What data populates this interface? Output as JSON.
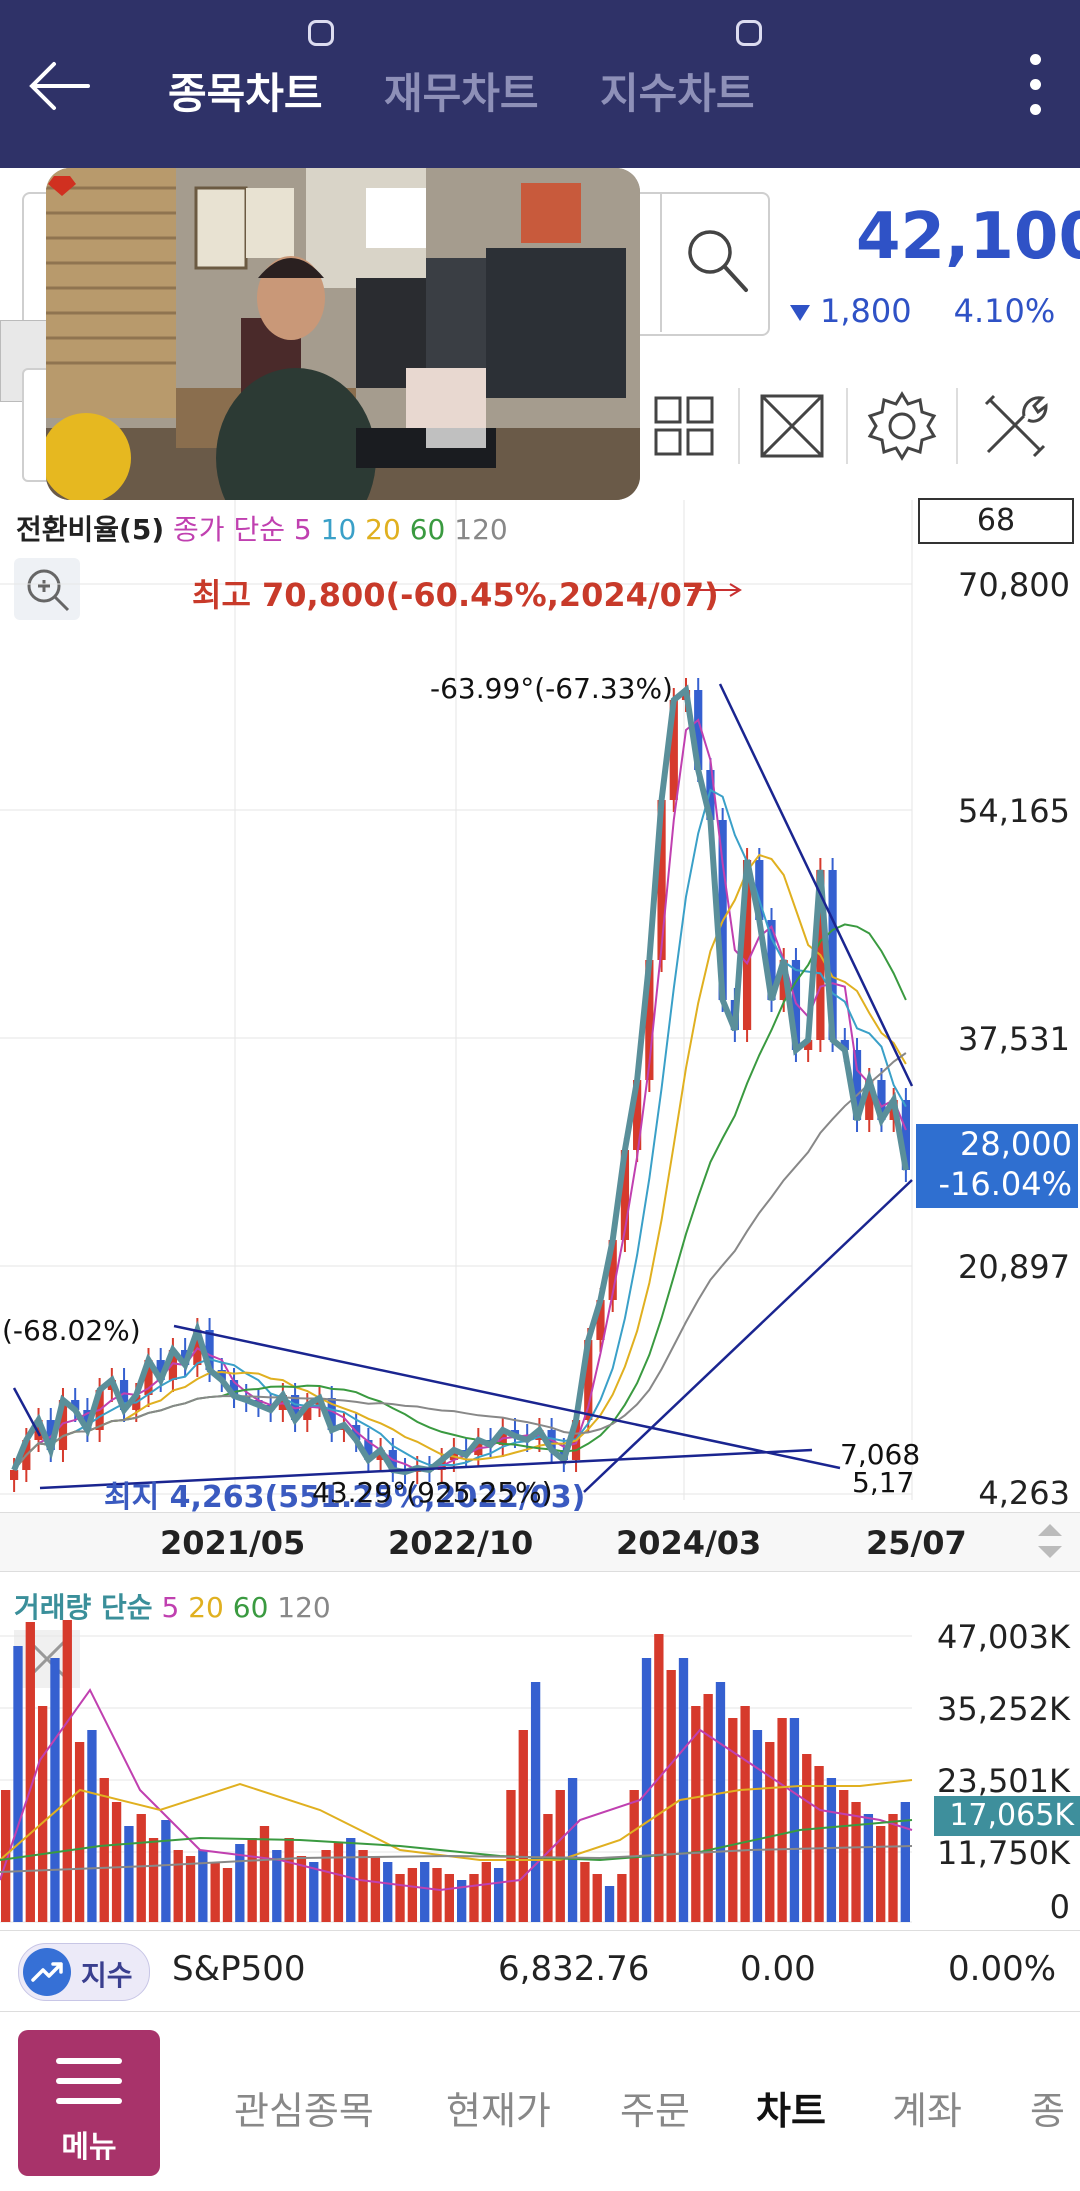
{
  "header": {
    "tabs": [
      {
        "label": "종목차트",
        "active": true
      },
      {
        "label": "재무차트",
        "active": false
      },
      {
        "label": "지수차트",
        "active": false
      }
    ]
  },
  "quote": {
    "price": "42,100",
    "change": "1,800",
    "change_pct": "4.10%",
    "color": "#2f52c6"
  },
  "chart": {
    "indicator_label_prefix": "전환비율(5)",
    "ma_label_prefix": "종가 단순",
    "ma_periods": [
      "5",
      "10",
      "20",
      "60",
      "120"
    ],
    "ma_colors": [
      "#c040b0",
      "#3aa0c8",
      "#e0b020",
      "#3a9a40",
      "#888888"
    ],
    "box_value": "68",
    "annotations": {
      "high": "최고 70,800(-60.45%,2024/07)",
      "angle": "-63.99°(-67.33%)",
      "left": "(-68.02%)",
      "low": "최지 4,263(551.25%,2022/03)",
      "mid": "43.29°(925.25%)",
      "r1": "7,068",
      "r2": "5,17"
    },
    "current": {
      "price": "28,000",
      "pct": "-16.04%"
    }
  },
  "chart_data": {
    "type": "candlestick",
    "y_ticks": [
      "70,800",
      "54,165",
      "37,531",
      "20,897",
      "4,263"
    ],
    "x_ticks": [
      "2021/05",
      "2022/10",
      "2024/03",
      "25/07"
    ],
    "volume": {
      "label_prefix": "거래량 단순",
      "ma_periods": [
        "5",
        "20",
        "60",
        "120"
      ],
      "y_ticks": [
        "47,003K",
        "35,252K",
        "23,501K",
        "11,750K",
        "0"
      ],
      "current": "17,065K"
    }
  },
  "ticker": {
    "badge": "지수",
    "name": "S&P500",
    "value": "6,832.76",
    "change": "0.00",
    "pct": "0.00%"
  },
  "nav": {
    "menu_label": "메뉴",
    "items": [
      {
        "label": "관심종목",
        "active": false
      },
      {
        "label": "현재가",
        "active": false
      },
      {
        "label": "주문",
        "active": false
      },
      {
        "label": "차트",
        "active": true
      },
      {
        "label": "계좌",
        "active": false
      },
      {
        "label": "종",
        "active": false
      }
    ]
  }
}
